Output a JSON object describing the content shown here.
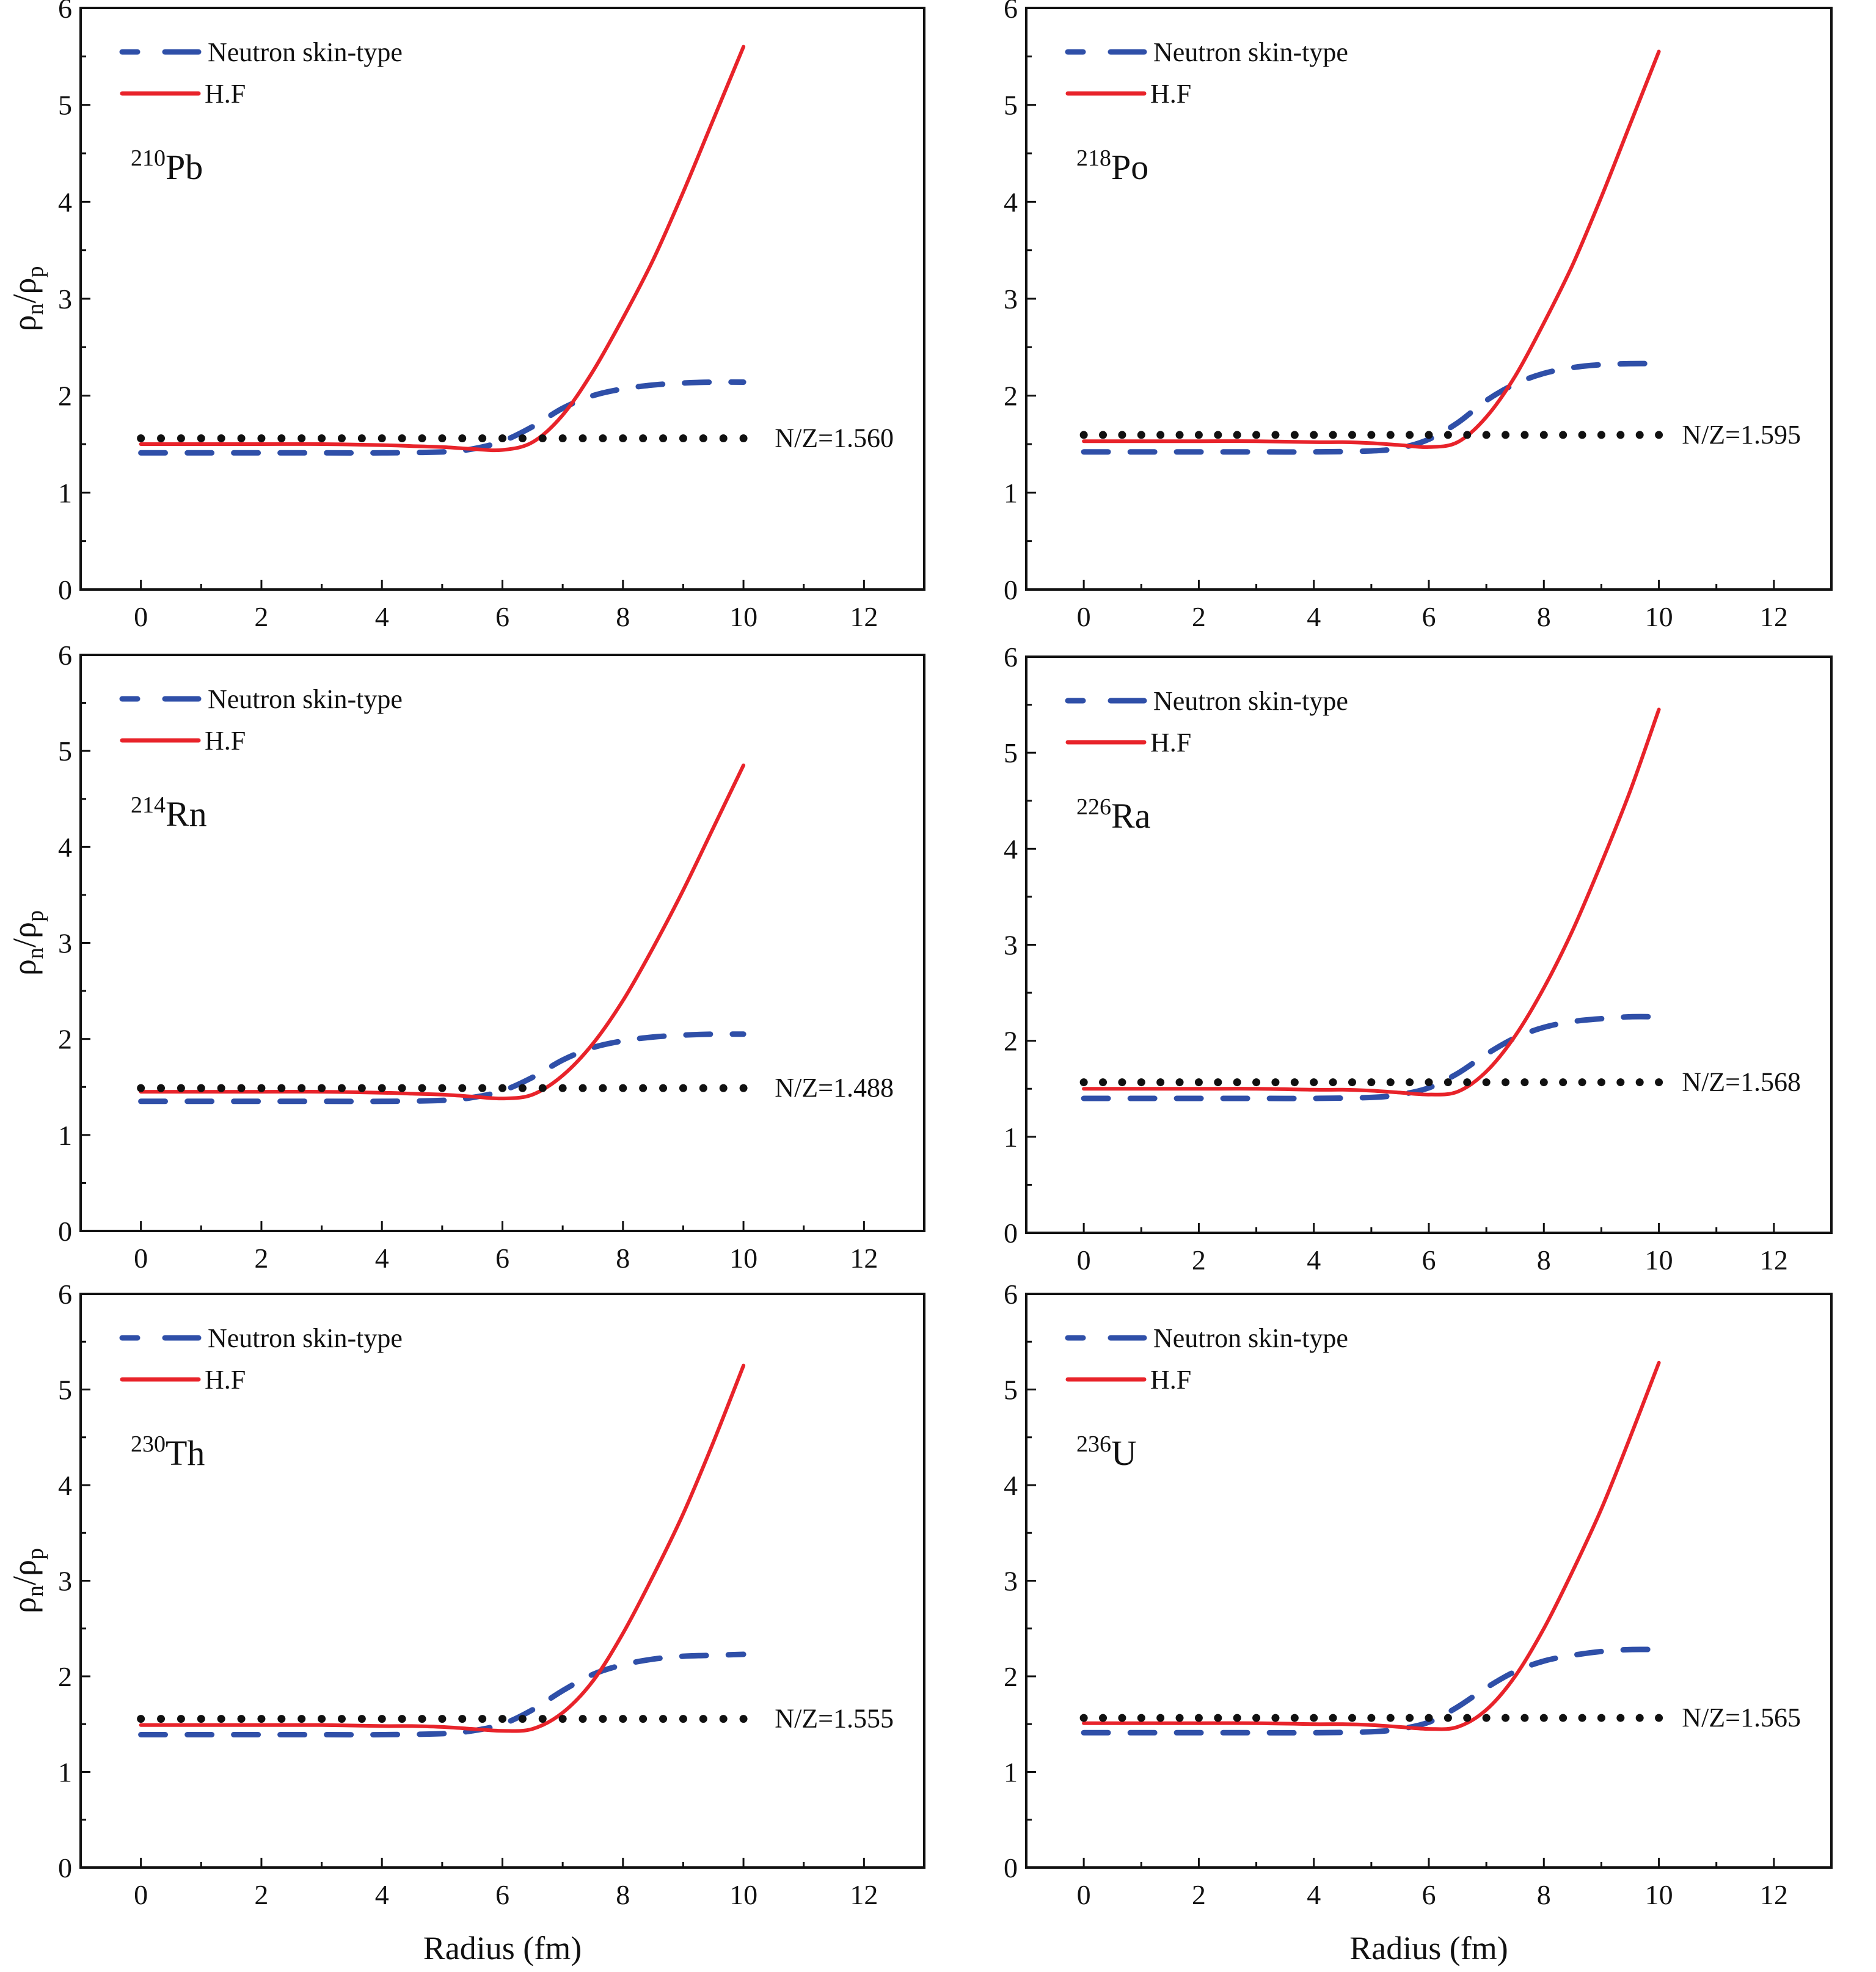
{
  "figure": {
    "xlabel": "Radius (fm)",
    "ylabel_main": "ρ",
    "ylabel_n": "n",
    "ylabel_slash": "/ρ",
    "ylabel_p": "p",
    "colors": {
      "skin": "#2f4fa8",
      "hf": "#e8232a",
      "nz": "#111111",
      "axis": "#111111"
    }
  },
  "chart_data": [
    {
      "type": "line",
      "nucleus": {
        "mass": "210",
        "symbol": "Pb"
      },
      "annotation": "N/Z=1.560",
      "nz_value": 1.56,
      "xlabel": "",
      "ylabel": "ρn/ρp",
      "xlim": [
        -1,
        13
      ],
      "ylim": [
        0,
        6
      ],
      "xticks": [
        "0",
        "2",
        "4",
        "6",
        "8",
        "10",
        "12"
      ],
      "yticks": [
        "0",
        "1",
        "2",
        "3",
        "4",
        "5",
        "6"
      ],
      "legend": {
        "position": "top-left",
        "entries": [
          "Neutron skin-type",
          "H.F"
        ]
      },
      "series": [
        {
          "name": "Neutron skin-type",
          "style": "dashed",
          "x": [
            0,
            1,
            2,
            3,
            4,
            5,
            5.5,
            6,
            6.5,
            7,
            7.5,
            8,
            8.5,
            9,
            9.5,
            10
          ],
          "y": [
            1.41,
            1.41,
            1.41,
            1.41,
            1.41,
            1.42,
            1.45,
            1.53,
            1.68,
            1.87,
            2.0,
            2.07,
            2.11,
            2.13,
            2.14,
            2.14
          ]
        },
        {
          "name": "H.F",
          "style": "solid",
          "x": [
            0,
            1,
            2,
            3,
            4,
            4.5,
            5,
            5.5,
            6,
            6.5,
            7,
            7.5,
            8,
            8.5,
            9,
            9.5,
            10
          ],
          "y": [
            1.5,
            1.5,
            1.5,
            1.5,
            1.49,
            1.48,
            1.47,
            1.45,
            1.44,
            1.52,
            1.8,
            2.25,
            2.8,
            3.4,
            4.1,
            4.85,
            5.6
          ]
        },
        {
          "name": "N/Z",
          "style": "dotted",
          "x": [
            0,
            10
          ],
          "y": [
            1.56,
            1.56
          ]
        }
      ]
    },
    {
      "type": "line",
      "nucleus": {
        "mass": "218",
        "symbol": "Po"
      },
      "annotation": "N/Z=1.595",
      "nz_value": 1.595,
      "xlabel": "",
      "ylabel": "",
      "xlim": [
        -1,
        13
      ],
      "ylim": [
        0,
        6
      ],
      "xticks": [
        "0",
        "2",
        "4",
        "6",
        "8",
        "10",
        "12"
      ],
      "yticks": [
        "0",
        "1",
        "2",
        "3",
        "4",
        "5",
        "6"
      ],
      "legend": {
        "position": "top-left",
        "entries": [
          "Neutron skin-type",
          "H.F"
        ]
      },
      "series": [
        {
          "name": "Neutron skin-type",
          "style": "dashed",
          "x": [
            0,
            1,
            2,
            3,
            4,
            5,
            5.5,
            6,
            6.5,
            7,
            7.5,
            8,
            8.5,
            9,
            9.5,
            10
          ],
          "y": [
            1.42,
            1.42,
            1.42,
            1.42,
            1.42,
            1.43,
            1.46,
            1.55,
            1.72,
            1.95,
            2.12,
            2.23,
            2.29,
            2.32,
            2.33,
            2.33
          ]
        },
        {
          "name": "H.F",
          "style": "solid",
          "x": [
            0,
            1,
            2,
            3,
            4,
            4.5,
            5,
            5.5,
            6,
            6.5,
            7,
            7.5,
            8,
            8.5,
            9,
            9.5,
            10
          ],
          "y": [
            1.53,
            1.53,
            1.53,
            1.53,
            1.52,
            1.52,
            1.51,
            1.49,
            1.47,
            1.52,
            1.78,
            2.2,
            2.75,
            3.35,
            4.05,
            4.8,
            5.55
          ]
        },
        {
          "name": "N/Z",
          "style": "dotted",
          "x": [
            0,
            10
          ],
          "y": [
            1.595,
            1.595
          ]
        }
      ]
    },
    {
      "type": "line",
      "nucleus": {
        "mass": "214",
        "symbol": "Rn"
      },
      "annotation": "N/Z=1.488",
      "nz_value": 1.488,
      "xlabel": "",
      "ylabel": "ρn/ρp",
      "xlim": [
        -1,
        13
      ],
      "ylim": [
        0,
        6
      ],
      "xticks": [
        "0",
        "2",
        "4",
        "6",
        "8",
        "10",
        "12"
      ],
      "yticks": [
        "0",
        "1",
        "2",
        "3",
        "4",
        "5",
        "6"
      ],
      "legend": {
        "position": "top-left",
        "entries": [
          "Neutron skin-type",
          "H.F"
        ]
      },
      "series": [
        {
          "name": "Neutron skin-type",
          "style": "dashed",
          "x": [
            0,
            1,
            2,
            3,
            4,
            5,
            5.5,
            6,
            6.5,
            7,
            7.5,
            8,
            8.5,
            9,
            9.5,
            10
          ],
          "y": [
            1.35,
            1.35,
            1.35,
            1.35,
            1.35,
            1.36,
            1.39,
            1.46,
            1.6,
            1.78,
            1.91,
            1.98,
            2.02,
            2.04,
            2.05,
            2.05
          ]
        },
        {
          "name": "H.F",
          "style": "solid",
          "x": [
            0,
            1,
            2,
            3,
            4,
            4.5,
            5,
            5.5,
            6,
            6.5,
            7,
            7.5,
            8,
            8.5,
            9,
            9.5,
            10
          ],
          "y": [
            1.45,
            1.45,
            1.45,
            1.45,
            1.44,
            1.43,
            1.42,
            1.4,
            1.38,
            1.42,
            1.62,
            1.95,
            2.4,
            2.95,
            3.55,
            4.2,
            4.85
          ]
        },
        {
          "name": "N/Z",
          "style": "dotted",
          "x": [
            0,
            10
          ],
          "y": [
            1.488,
            1.488
          ]
        }
      ]
    },
    {
      "type": "line",
      "nucleus": {
        "mass": "226",
        "symbol": "Ra"
      },
      "annotation": "N/Z=1.568",
      "nz_value": 1.568,
      "xlabel": "",
      "ylabel": "",
      "xlim": [
        -1,
        13
      ],
      "ylim": [
        0,
        6
      ],
      "xticks": [
        "0",
        "2",
        "4",
        "6",
        "8",
        "10",
        "12"
      ],
      "yticks": [
        "0",
        "1",
        "2",
        "3",
        "4",
        "5",
        "6"
      ],
      "legend": {
        "position": "top-left",
        "entries": [
          "Neutron skin-type",
          "H.F"
        ]
      },
      "series": [
        {
          "name": "Neutron skin-type",
          "style": "dashed",
          "x": [
            0,
            1,
            2,
            3,
            4,
            5,
            5.5,
            6,
            6.5,
            7,
            7.5,
            8,
            8.5,
            9,
            9.5,
            10
          ],
          "y": [
            1.4,
            1.4,
            1.4,
            1.4,
            1.4,
            1.41,
            1.44,
            1.51,
            1.66,
            1.86,
            2.03,
            2.14,
            2.2,
            2.23,
            2.25,
            2.25
          ]
        },
        {
          "name": "H.F",
          "style": "solid",
          "x": [
            0,
            1,
            2,
            3,
            4,
            4.5,
            5,
            5.5,
            6,
            6.5,
            7,
            7.5,
            8,
            8.5,
            9,
            9.5,
            10
          ],
          "y": [
            1.5,
            1.5,
            1.5,
            1.5,
            1.49,
            1.49,
            1.48,
            1.46,
            1.44,
            1.47,
            1.68,
            2.05,
            2.55,
            3.15,
            3.85,
            4.6,
            5.45
          ]
        },
        {
          "name": "N/Z",
          "style": "dotted",
          "x": [
            0,
            10
          ],
          "y": [
            1.568,
            1.568
          ]
        }
      ]
    },
    {
      "type": "line",
      "nucleus": {
        "mass": "230",
        "symbol": "Th"
      },
      "annotation": "N/Z=1.555",
      "nz_value": 1.555,
      "xlabel": "Radius (fm)",
      "ylabel": "ρn/ρp",
      "xlim": [
        -1,
        13
      ],
      "ylim": [
        0,
        6
      ],
      "xticks": [
        "0",
        "2",
        "4",
        "6",
        "8",
        "10",
        "12"
      ],
      "yticks": [
        "0",
        "1",
        "2",
        "3",
        "4",
        "5",
        "6"
      ],
      "legend": {
        "position": "top-left",
        "entries": [
          "Neutron skin-type",
          "H.F"
        ]
      },
      "series": [
        {
          "name": "Neutron skin-type",
          "style": "dashed",
          "x": [
            0,
            1,
            2,
            3,
            4,
            5,
            5.5,
            6,
            6.5,
            7,
            7.5,
            8,
            8.5,
            9,
            9.5,
            10
          ],
          "y": [
            1.39,
            1.39,
            1.39,
            1.39,
            1.39,
            1.4,
            1.43,
            1.5,
            1.65,
            1.85,
            2.02,
            2.12,
            2.18,
            2.21,
            2.22,
            2.23
          ]
        },
        {
          "name": "H.F",
          "style": "solid",
          "x": [
            0,
            1,
            2,
            3,
            4,
            4.5,
            5,
            5.5,
            6,
            6.5,
            7,
            7.5,
            8,
            8.5,
            9,
            9.5,
            10
          ],
          "y": [
            1.49,
            1.49,
            1.49,
            1.49,
            1.48,
            1.48,
            1.47,
            1.45,
            1.43,
            1.45,
            1.62,
            1.95,
            2.45,
            3.05,
            3.7,
            4.45,
            5.25
          ]
        },
        {
          "name": "N/Z",
          "style": "dotted",
          "x": [
            0,
            10
          ],
          "y": [
            1.555,
            1.555
          ]
        }
      ]
    },
    {
      "type": "line",
      "nucleus": {
        "mass": "236",
        "symbol": "U"
      },
      "annotation": "N/Z=1.565",
      "nz_value": 1.565,
      "xlabel": "Radius (fm)",
      "ylabel": "",
      "xlim": [
        -1,
        13
      ],
      "ylim": [
        0,
        6
      ],
      "xticks": [
        "0",
        "2",
        "4",
        "6",
        "8",
        "10",
        "12"
      ],
      "yticks": [
        "0",
        "1",
        "2",
        "3",
        "4",
        "5",
        "6"
      ],
      "legend": {
        "position": "top-left",
        "entries": [
          "Neutron skin-type",
          "H.F"
        ]
      },
      "series": [
        {
          "name": "Neutron skin-type",
          "style": "dashed",
          "x": [
            0,
            1,
            2,
            3,
            4,
            5,
            5.5,
            6,
            6.5,
            7,
            7.5,
            8,
            8.5,
            9,
            9.5,
            10
          ],
          "y": [
            1.41,
            1.41,
            1.41,
            1.41,
            1.41,
            1.42,
            1.45,
            1.52,
            1.68,
            1.88,
            2.05,
            2.16,
            2.22,
            2.26,
            2.28,
            2.28
          ]
        },
        {
          "name": "H.F",
          "style": "solid",
          "x": [
            0,
            1,
            2,
            3,
            4,
            4.5,
            5,
            5.5,
            6,
            6.5,
            7,
            7.5,
            8,
            8.5,
            9,
            9.5,
            10
          ],
          "y": [
            1.51,
            1.51,
            1.51,
            1.51,
            1.5,
            1.5,
            1.49,
            1.47,
            1.45,
            1.47,
            1.65,
            2.0,
            2.5,
            3.1,
            3.75,
            4.5,
            5.28
          ]
        },
        {
          "name": "N/Z",
          "style": "dotted",
          "x": [
            0,
            10
          ],
          "y": [
            1.565,
            1.565
          ]
        }
      ]
    }
  ]
}
